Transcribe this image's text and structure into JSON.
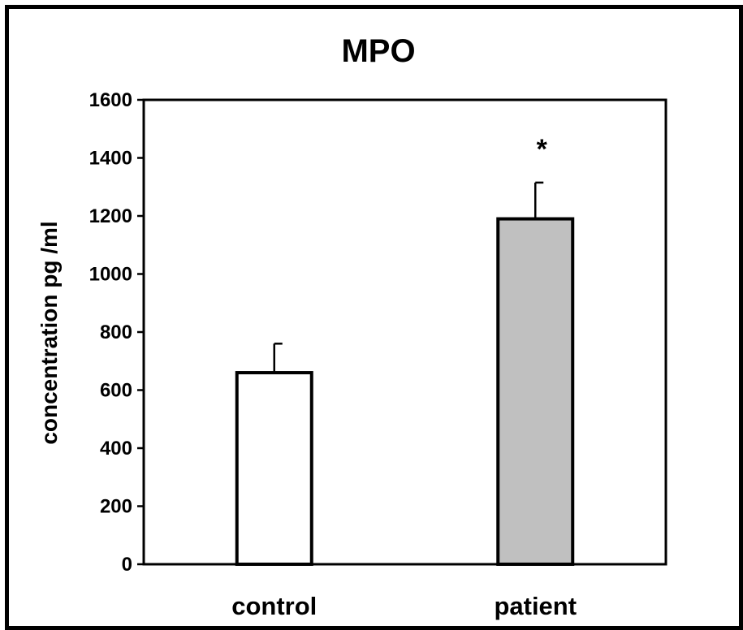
{
  "chart_data": {
    "type": "bar",
    "title": "MPO",
    "ylabel": "concentration pg /ml",
    "xlabel": "",
    "categories": [
      "control",
      "patient"
    ],
    "values": [
      660,
      1190
    ],
    "errors": [
      100,
      125
    ],
    "bar_colors": [
      "#ffffff",
      "#c0c0c0"
    ],
    "annotations": [
      "",
      "*"
    ],
    "ylim": [
      0,
      1600
    ],
    "yticks": [
      "0",
      "200",
      "400",
      "600",
      "800",
      "1000",
      "1200",
      "1400",
      "1600"
    ],
    "grid": false
  }
}
